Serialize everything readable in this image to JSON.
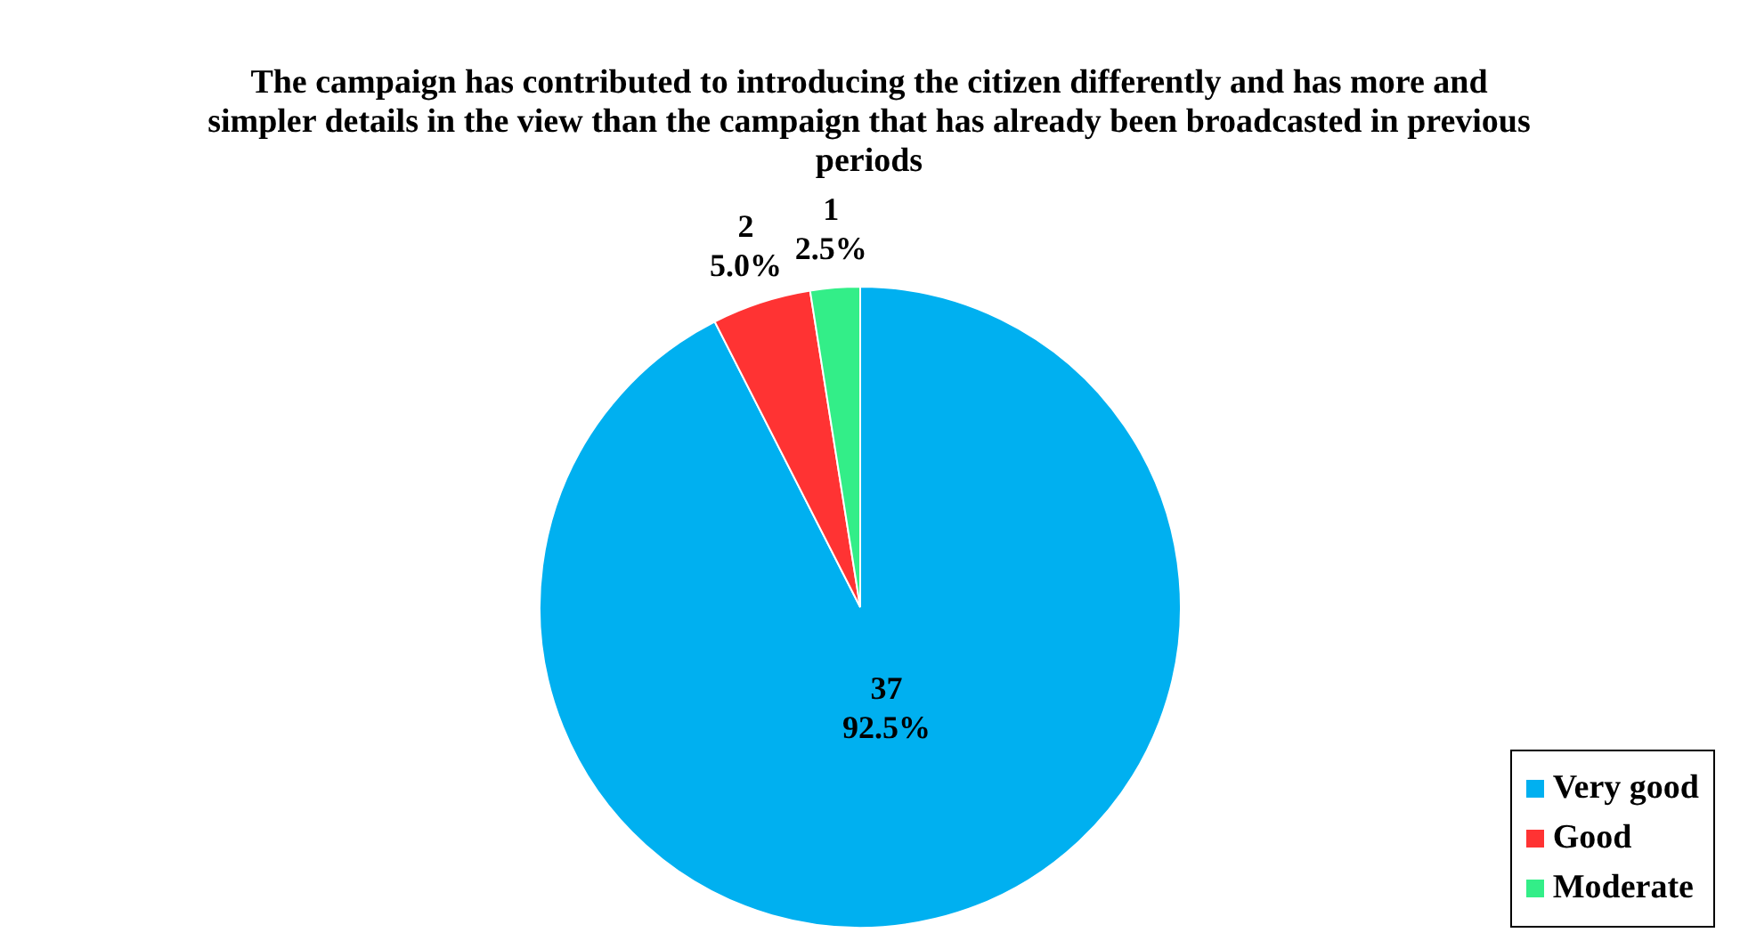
{
  "chart_data": {
    "type": "pie",
    "title": "The campaign has contributed to introducing the citizen differently and has more and simpler details in the view than the campaign that has already been broadcasted in previous periods",
    "categories": [
      "Very good",
      "Good",
      "Moderate"
    ],
    "values": [
      37,
      2,
      1
    ],
    "colors": [
      "#00b0f0",
      "#ff3333",
      "#33ee88"
    ],
    "value_labels": [
      "37\n92.5%",
      "2\n5.0%",
      "1\n2.5%"
    ],
    "legend": "bottom right"
  }
}
